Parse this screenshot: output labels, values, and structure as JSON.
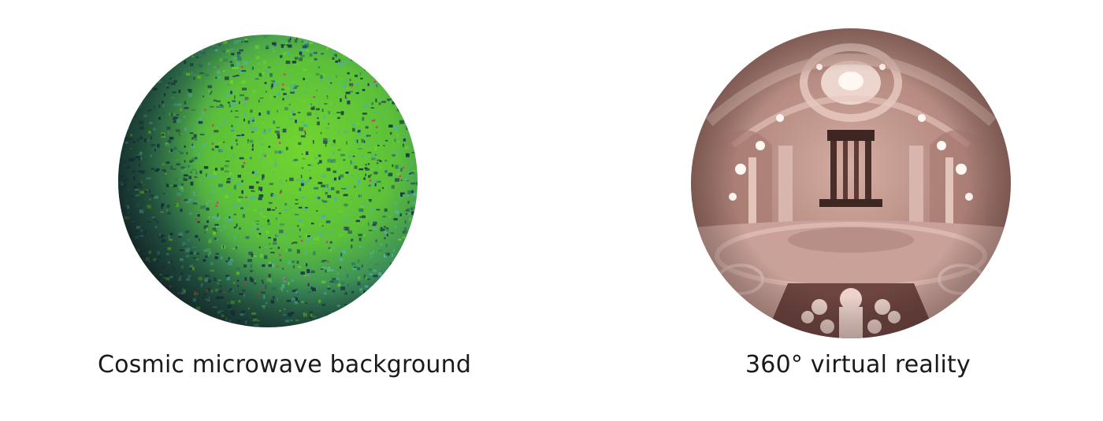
{
  "figure": {
    "left": {
      "caption": "Cosmic microwave background",
      "colors": {
        "shadow": "#1c2b2b",
        "mid": "#2f7a63",
        "bright": "#6fd12a",
        "teal": "#4fb39a",
        "speck": "#1b3a4a",
        "hot": "#c8465a"
      }
    },
    "right": {
      "caption": "360° virtual reality",
      "colors": {
        "base": "#b98f86",
        "light": "#e8cbc2",
        "dark": "#5e3a35",
        "highlight": "#fff7f2"
      }
    }
  }
}
